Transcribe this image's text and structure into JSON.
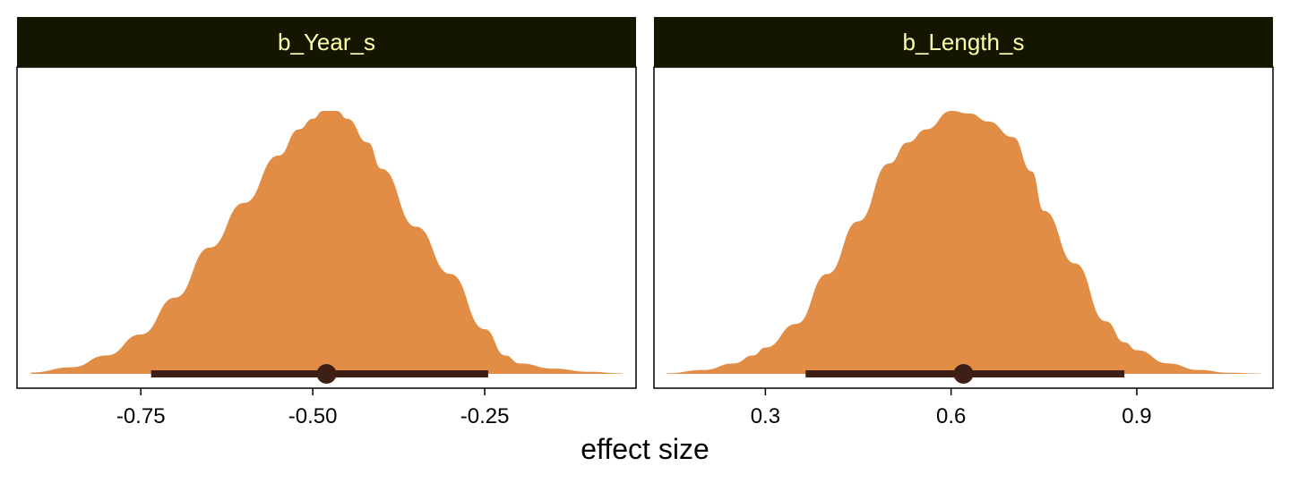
{
  "chart_data": {
    "type": "area",
    "xlabel": "effect size",
    "ylabel": "",
    "grid": false,
    "legend": "none",
    "colors": {
      "density_fill": "#E28D45",
      "interval": "#3D1F15",
      "strip_background": "#141600",
      "strip_text": "#FFFFAA",
      "panel_border": "#000000"
    },
    "panels": [
      {
        "strip_label": "b_Year_s",
        "xlim": [
          -0.93,
          -0.03
        ],
        "ticks": [
          -0.75,
          -0.5,
          -0.25
        ],
        "tick_labels": [
          "-0.75",
          "-0.50",
          "-0.25"
        ],
        "point_estimate": -0.48,
        "interval": [
          -0.735,
          -0.245
        ],
        "density": {
          "x": [
            -0.91,
            -0.85,
            -0.8,
            -0.75,
            -0.7,
            -0.65,
            -0.6,
            -0.55,
            -0.52,
            -0.5,
            -0.485,
            -0.465,
            -0.45,
            -0.42,
            -0.4,
            -0.35,
            -0.3,
            -0.25,
            -0.22,
            -0.2,
            -0.15,
            -0.1,
            -0.05
          ],
          "y": [
            0.005,
            0.025,
            0.07,
            0.15,
            0.29,
            0.48,
            0.65,
            0.83,
            0.93,
            0.97,
            1.0,
            1.0,
            0.97,
            0.88,
            0.78,
            0.56,
            0.38,
            0.17,
            0.07,
            0.04,
            0.02,
            0.008,
            0.002
          ]
        }
      },
      {
        "strip_label": "b_Length_s",
        "xlim": [
          0.12,
          1.12
        ],
        "ticks": [
          0.3,
          0.6,
          0.9
        ],
        "tick_labels": [
          "0.3",
          "0.6",
          "0.9"
        ],
        "point_estimate": 0.62,
        "interval": [
          0.365,
          0.88
        ],
        "density": {
          "x": [
            0.14,
            0.2,
            0.25,
            0.28,
            0.3,
            0.35,
            0.4,
            0.45,
            0.5,
            0.53,
            0.56,
            0.6,
            0.63,
            0.66,
            0.7,
            0.73,
            0.75,
            0.8,
            0.85,
            0.88,
            0.9,
            0.95,
            1.0,
            1.05,
            1.1
          ],
          "y": [
            0.002,
            0.015,
            0.04,
            0.07,
            0.1,
            0.19,
            0.38,
            0.58,
            0.8,
            0.88,
            0.93,
            1.0,
            0.99,
            0.96,
            0.9,
            0.77,
            0.62,
            0.42,
            0.2,
            0.12,
            0.09,
            0.04,
            0.015,
            0.004,
            0.001
          ]
        }
      }
    ]
  }
}
